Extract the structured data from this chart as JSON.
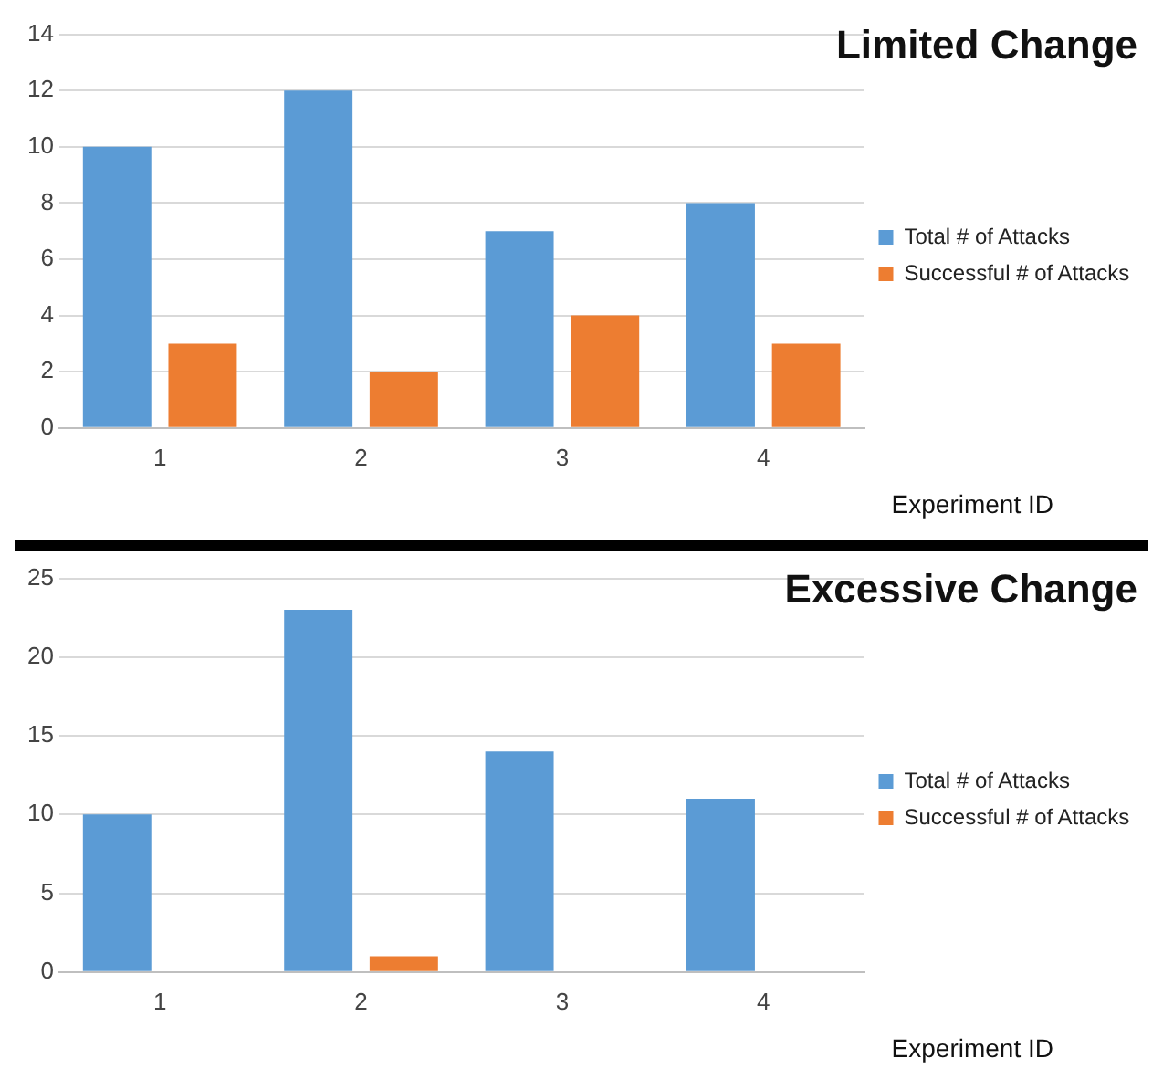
{
  "chart_data": [
    {
      "type": "bar",
      "title": "Limited Change",
      "xlabel": "Experiment ID",
      "categories": [
        "1",
        "2",
        "3",
        "4"
      ],
      "series": [
        {
          "name": "Total # of Attacks",
          "color": "#5b9bd5",
          "values": [
            10,
            12,
            7,
            8
          ]
        },
        {
          "name": "Successful # of Attacks",
          "color": "#ed7d31",
          "values": [
            3,
            2,
            4,
            3
          ]
        }
      ],
      "ylim": [
        0,
        14
      ],
      "yticks": [
        0,
        2,
        4,
        6,
        8,
        10,
        12,
        14
      ],
      "grid": "y",
      "legend": "right"
    },
    {
      "type": "bar",
      "title": "Excessive Change",
      "xlabel": "Experiment ID",
      "categories": [
        "1",
        "2",
        "3",
        "4"
      ],
      "series": [
        {
          "name": "Total # of Attacks",
          "color": "#5b9bd5",
          "values": [
            10,
            23,
            14,
            11
          ]
        },
        {
          "name": "Successful # of Attacks",
          "color": "#ed7d31",
          "values": [
            0,
            1,
            0,
            0
          ]
        }
      ],
      "ylim": [
        0,
        25
      ],
      "yticks": [
        0,
        5,
        10,
        15,
        20,
        25
      ],
      "grid": "y",
      "legend": "right"
    }
  ]
}
